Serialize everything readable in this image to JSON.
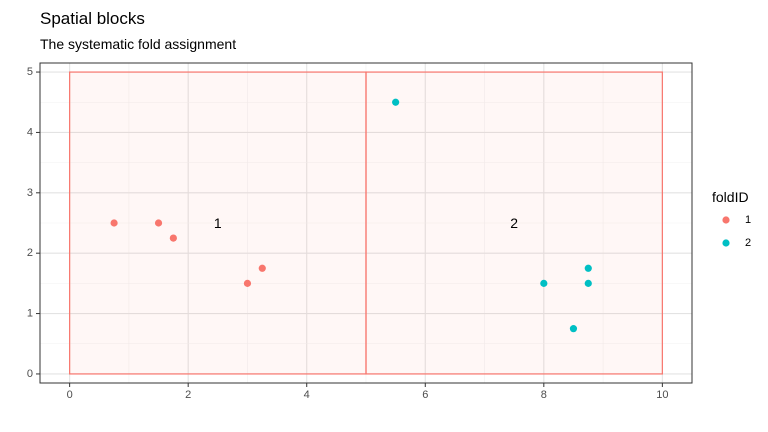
{
  "chart_data": {
    "type": "scatter",
    "title": "Spatial blocks",
    "subtitle": "The systematic fold assignment",
    "xlabel": "",
    "ylabel": "",
    "xlim": [
      -0.5,
      10.5
    ],
    "ylim": [
      -0.15,
      5.15
    ],
    "x_ticks": [
      0,
      2,
      4,
      6,
      8,
      10
    ],
    "y_ticks": [
      0,
      1,
      2,
      3,
      4,
      5
    ],
    "grid": true,
    "legend": {
      "title": "foldID",
      "position": "right",
      "entries": [
        "1",
        "2"
      ]
    },
    "colors": {
      "1": "#F8766D",
      "2": "#00BFC4"
    },
    "blocks": [
      {
        "label": "1",
        "xmin": 0,
        "xmax": 5,
        "ymin": 0,
        "ymax": 5,
        "label_x": 2.5,
        "label_y": 2.5,
        "fold": "1"
      },
      {
        "label": "2",
        "xmin": 5,
        "xmax": 10,
        "ymin": 0,
        "ymax": 5,
        "label_x": 7.5,
        "label_y": 2.5,
        "fold": "1"
      }
    ],
    "series": [
      {
        "name": "1",
        "points": [
          [
            0.75,
            2.5
          ],
          [
            1.5,
            2.5
          ],
          [
            1.75,
            2.25
          ],
          [
            3.0,
            1.5
          ],
          [
            3.25,
            1.75
          ]
        ]
      },
      {
        "name": "2",
        "points": [
          [
            5.5,
            4.5
          ],
          [
            8.0,
            1.5
          ],
          [
            8.75,
            1.75
          ],
          [
            8.75,
            1.5
          ],
          [
            8.5,
            0.75
          ]
        ]
      }
    ]
  }
}
